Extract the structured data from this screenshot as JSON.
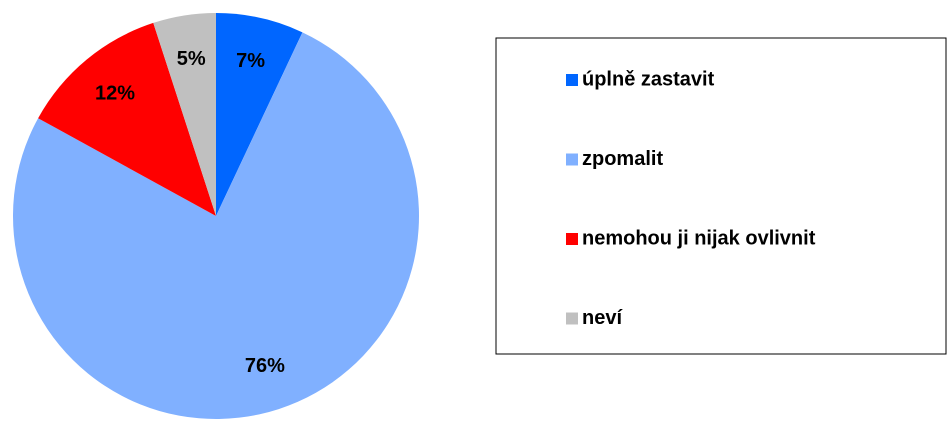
{
  "chart_data": {
    "type": "pie",
    "categories": [
      "úplně zastavit",
      "zpomalit",
      "nemohou ji nijak ovlivnit",
      "neví"
    ],
    "values": [
      7,
      76,
      12,
      5
    ],
    "value_labels": [
      "7%",
      "76%",
      "12%",
      "5%"
    ],
    "colors": [
      "#0066ff",
      "#80b0ff",
      "#ff0000",
      "#c0c0c0"
    ],
    "legend": "right"
  }
}
